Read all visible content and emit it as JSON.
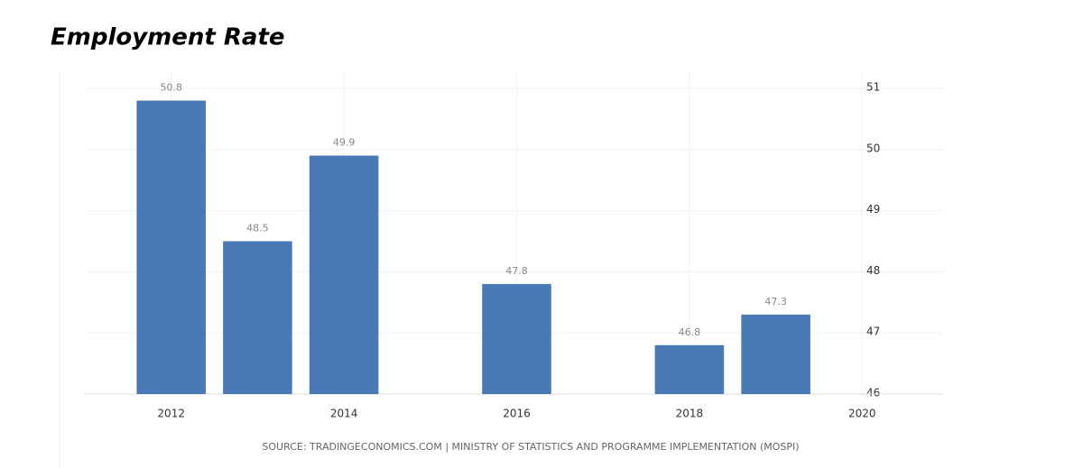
{
  "chart_data": {
    "type": "bar",
    "title": "Employment Rate",
    "x": [
      2012,
      2013,
      2014,
      2016,
      2018,
      2019
    ],
    "values": [
      50.8,
      48.5,
      49.9,
      47.8,
      46.8,
      47.3
    ],
    "color": "#4a7ab5",
    "xlim": [
      2011,
      2021
    ],
    "xticks": [
      2012,
      2014,
      2016,
      2018,
      2020
    ],
    "ylim": [
      46,
      51
    ],
    "yticks": [
      46,
      47,
      48,
      49,
      50,
      51
    ],
    "grid": true,
    "source": "SOURCE: TRADINGECONOMICS.COM | MINISTRY OF STATISTICS AND PROGRAMME IMPLEMENTATION (MOSPI)"
  }
}
